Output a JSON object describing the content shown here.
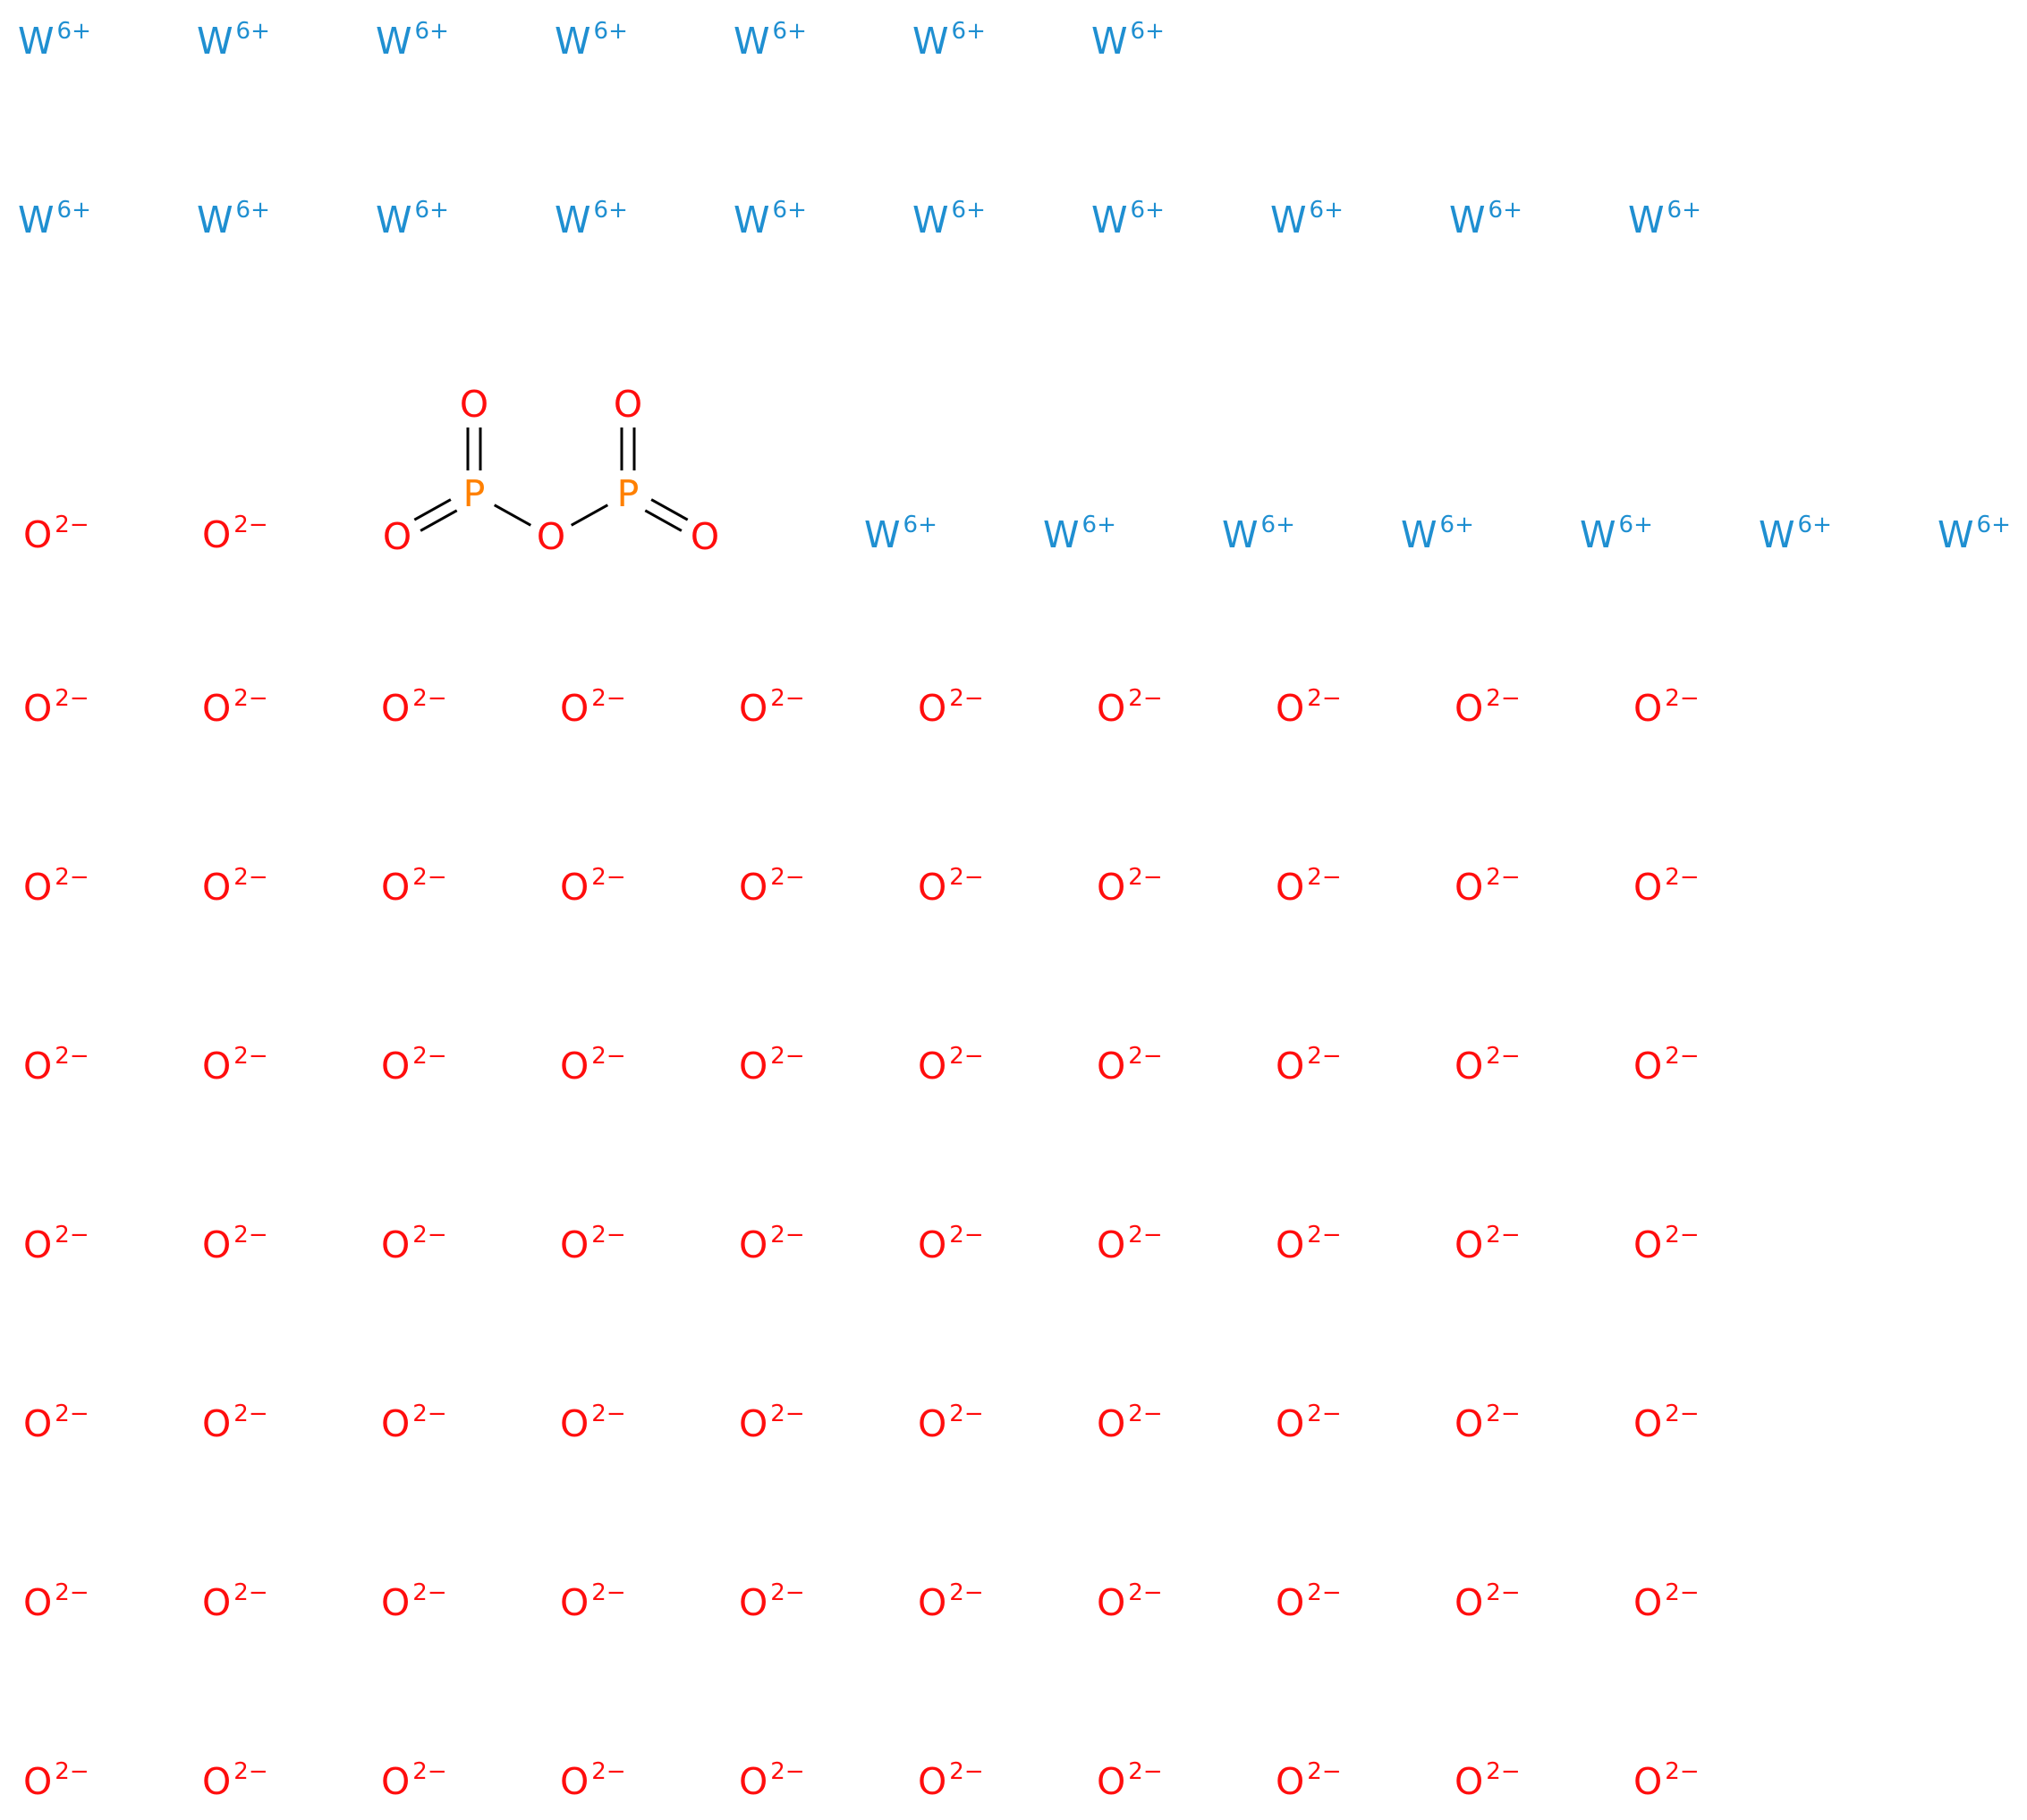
{
  "colors": {
    "tungsten": "#1f8fd1",
    "oxygen": "#ff0d0d",
    "phosphorus": "#ff8000",
    "bond": "#000000"
  },
  "tungsten_ion": {
    "symbol": "W",
    "charge": "6+"
  },
  "oxide_ion": {
    "symbol": "O",
    "charge": "2−"
  },
  "ion_rows": [
    {
      "kind": "tungsten",
      "count": 7
    },
    {
      "kind": "tungsten",
      "count": 10
    },
    {
      "kind": "oxide",
      "count": 2
    },
    {
      "kind": "tungsten",
      "count": 7
    },
    {
      "kind": "oxide",
      "count": 10
    },
    {
      "kind": "oxide",
      "count": 10
    },
    {
      "kind": "oxide",
      "count": 10
    },
    {
      "kind": "oxide",
      "count": 10
    },
    {
      "kind": "oxide",
      "count": 10
    },
    {
      "kind": "oxide",
      "count": 10
    },
    {
      "kind": "oxide",
      "count": 10
    }
  ],
  "molecule": {
    "name_atoms": "P2O5 (diphosphorus pentoxide) fragment",
    "atoms": [
      {
        "id": "O1",
        "symbol": "O",
        "element": "oxygen"
      },
      {
        "id": "P1",
        "symbol": "P",
        "element": "phosphorus"
      },
      {
        "id": "O2",
        "symbol": "O",
        "element": "oxygen"
      },
      {
        "id": "O3",
        "symbol": "O",
        "element": "oxygen"
      },
      {
        "id": "P2",
        "symbol": "P",
        "element": "phosphorus"
      },
      {
        "id": "O4",
        "symbol": "O",
        "element": "oxygen"
      },
      {
        "id": "O5",
        "symbol": "O",
        "element": "oxygen"
      }
    ],
    "bonds": [
      {
        "from": "P1",
        "to": "O1",
        "order": 2
      },
      {
        "from": "P1",
        "to": "O2",
        "order": 2
      },
      {
        "from": "P1",
        "to": "O3",
        "order": 1
      },
      {
        "from": "O3",
        "to": "P2",
        "order": 1
      },
      {
        "from": "P2",
        "to": "O4",
        "order": 2
      },
      {
        "from": "P2",
        "to": "O5",
        "order": 2
      }
    ]
  }
}
